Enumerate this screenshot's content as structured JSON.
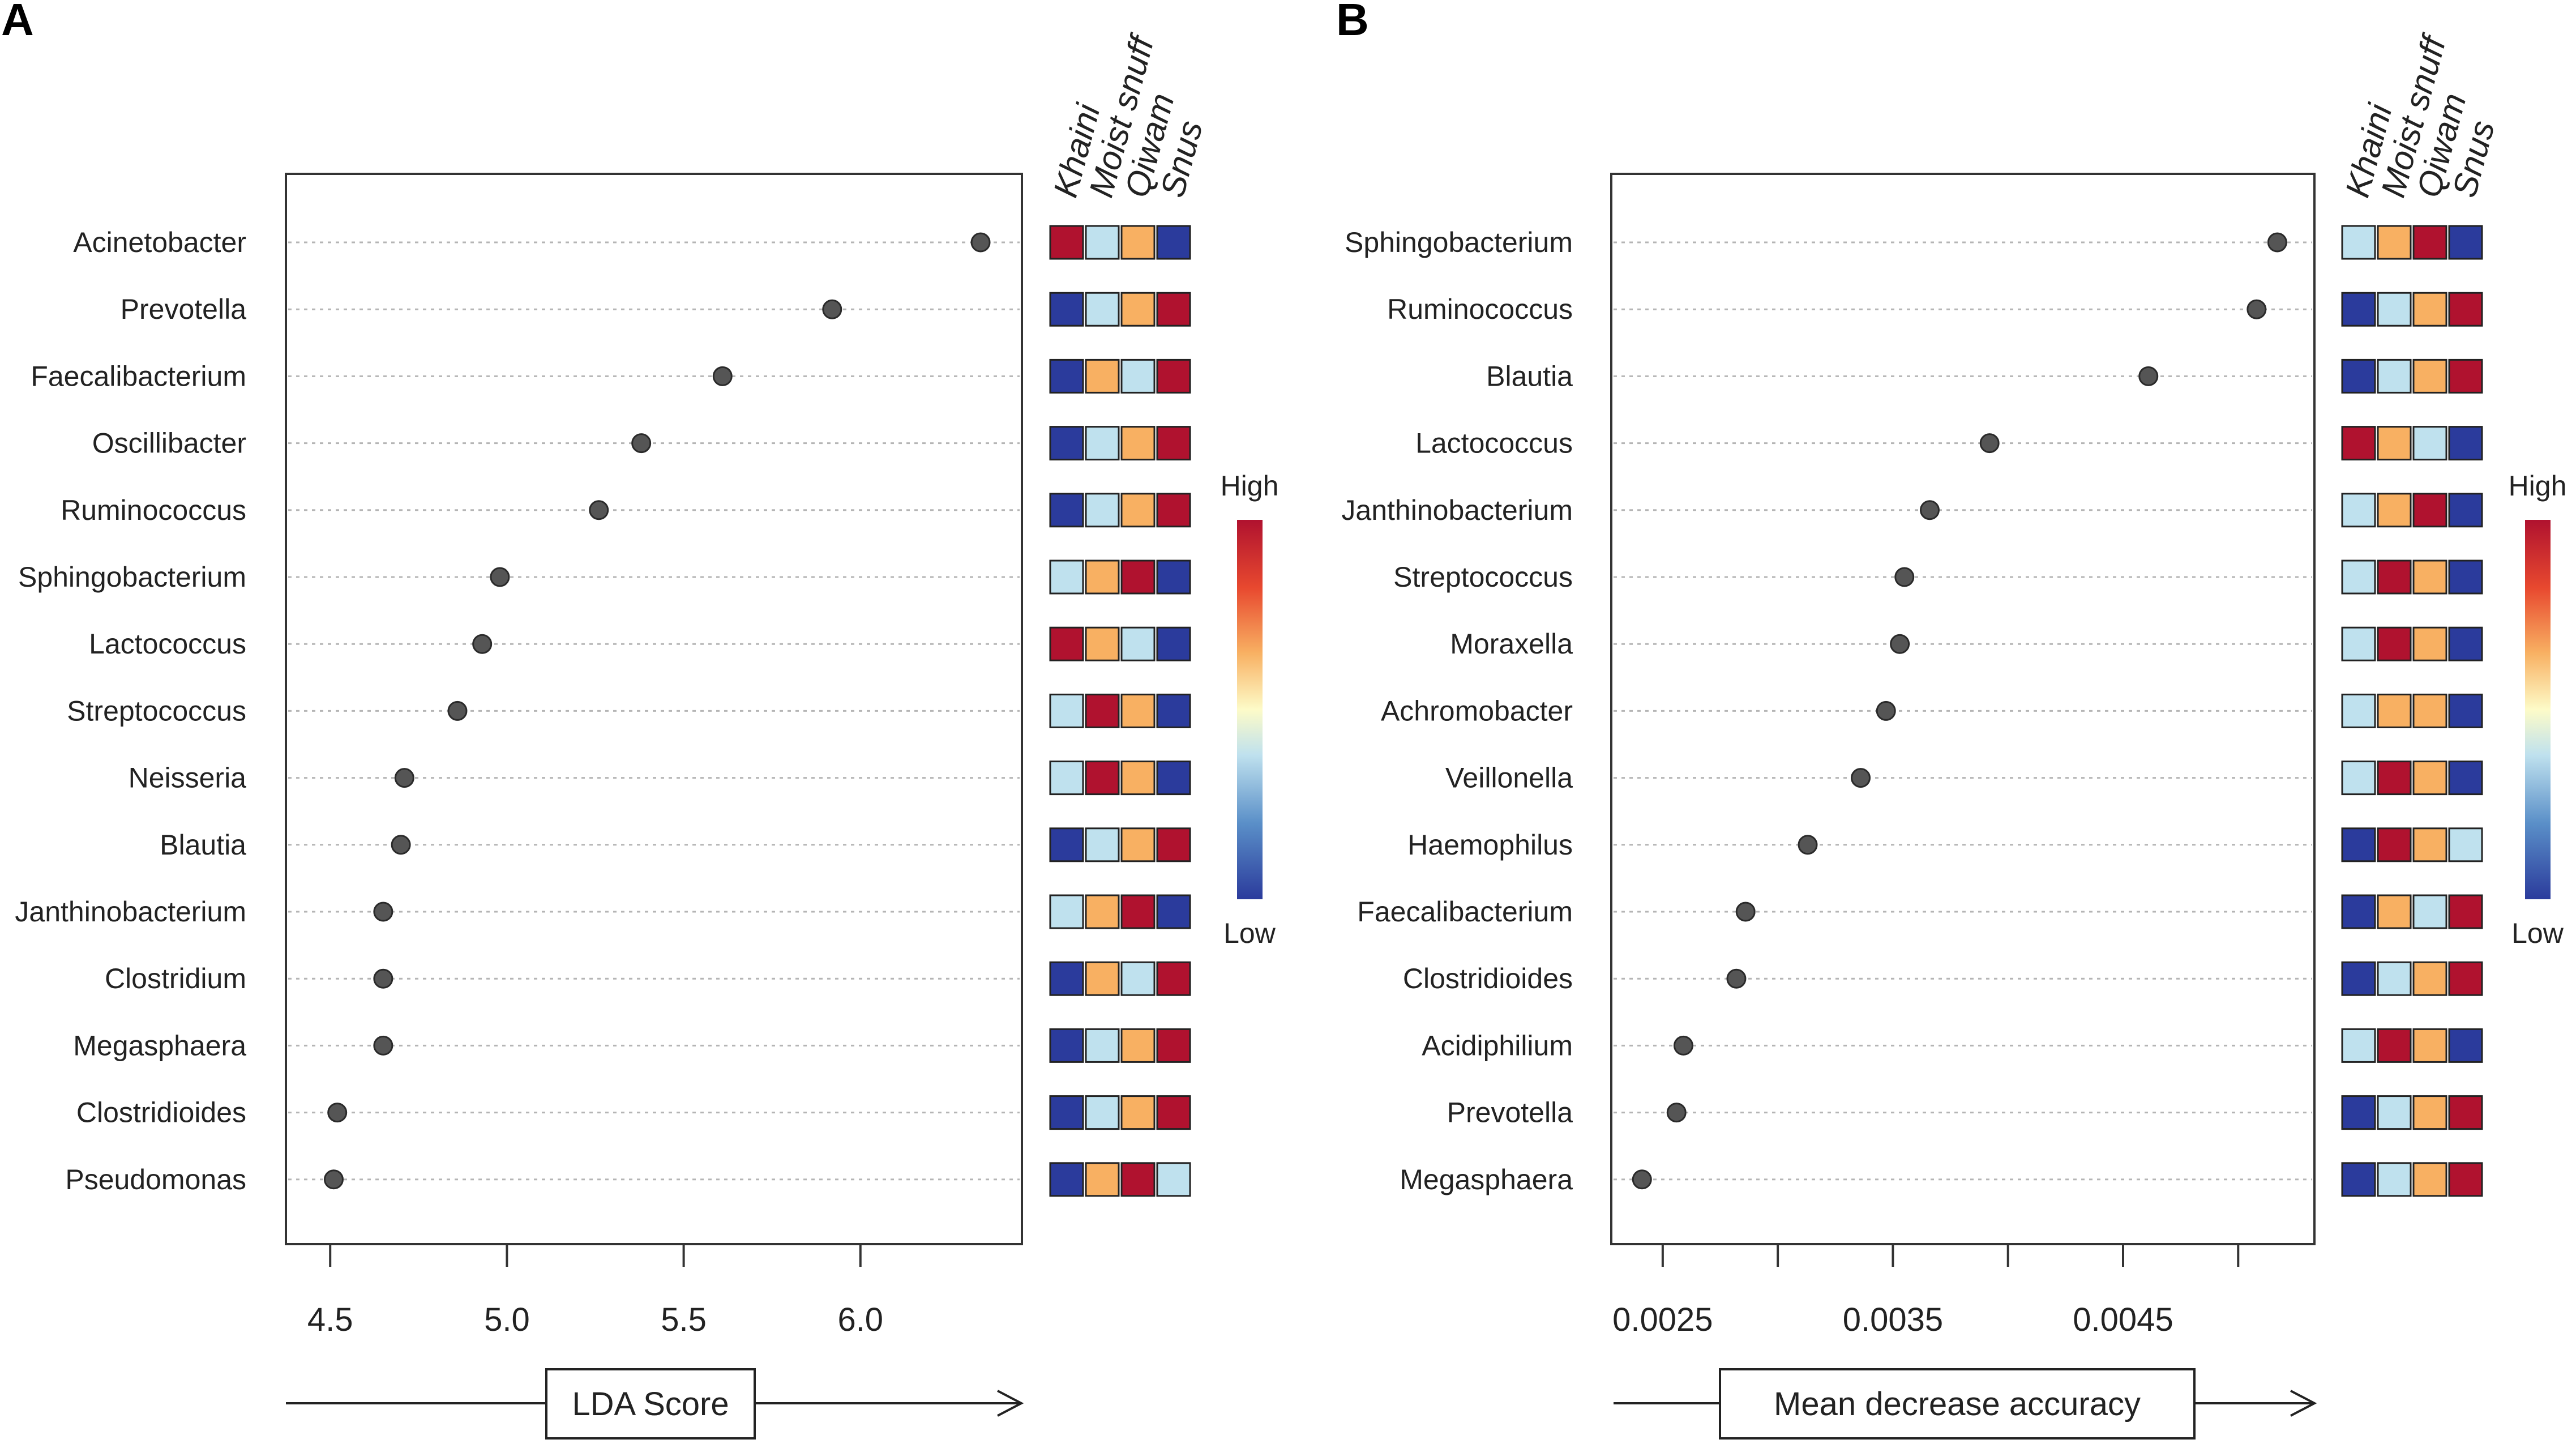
{
  "colors": {
    "low": "#2b3b9c",
    "mid_low": "#bfe1ee",
    "mid_high": "#f8b062",
    "high": "#b0122f",
    "dot": "#555555"
  },
  "legend": {
    "high_label": "High",
    "low_label": "Low"
  },
  "chart_data": [
    {
      "type": "scatter",
      "panel": "A",
      "xlabel": "LDA Score",
      "xlim": [
        4.45,
        6.42
      ],
      "xticks": [
        4.5,
        5.0,
        5.5,
        6.0
      ],
      "xtick_labels": [
        "4.5",
        "5.0",
        "5.5",
        "6.0"
      ],
      "groups": [
        "Khaini",
        "Moist snuff",
        "Qiwam",
        "Snus"
      ],
      "rows": [
        {
          "label": "Acinetobacter",
          "value": 6.34,
          "levels": [
            4,
            2,
            3,
            1
          ]
        },
        {
          "label": "Prevotella",
          "value": 5.92,
          "levels": [
            1,
            2,
            3,
            4
          ]
        },
        {
          "label": "Faecalibacterium",
          "value": 5.61,
          "levels": [
            1,
            3,
            2,
            4
          ]
        },
        {
          "label": "Oscillibacter",
          "value": 5.38,
          "levels": [
            1,
            2,
            3,
            4
          ]
        },
        {
          "label": "Ruminococcus",
          "value": 5.26,
          "levels": [
            1,
            2,
            3,
            4
          ]
        },
        {
          "label": "Sphingobacterium",
          "value": 4.98,
          "levels": [
            2,
            3,
            4,
            1
          ]
        },
        {
          "label": "Lactococcus",
          "value": 4.93,
          "levels": [
            4,
            3,
            2,
            1
          ]
        },
        {
          "label": "Streptococcus",
          "value": 4.86,
          "levels": [
            2,
            4,
            3,
            1
          ]
        },
        {
          "label": "Neisseria",
          "value": 4.71,
          "levels": [
            2,
            4,
            3,
            1
          ]
        },
        {
          "label": "Blautia",
          "value": 4.7,
          "levels": [
            1,
            2,
            3,
            4
          ]
        },
        {
          "label": "Janthinobacterium",
          "value": 4.65,
          "levels": [
            2,
            3,
            4,
            1
          ]
        },
        {
          "label": "Clostridium",
          "value": 4.65,
          "levels": [
            1,
            3,
            2,
            4
          ]
        },
        {
          "label": "Megasphaera",
          "value": 4.65,
          "levels": [
            1,
            2,
            3,
            4
          ]
        },
        {
          "label": "Clostridioides",
          "value": 4.52,
          "levels": [
            1,
            2,
            3,
            4
          ]
        },
        {
          "label": "Pseudomonas",
          "value": 4.51,
          "levels": [
            1,
            3,
            4,
            2
          ]
        }
      ]
    },
    {
      "type": "scatter",
      "panel": "B",
      "xlabel": "Mean decrease accuracy",
      "xlim": [
        0.00237,
        0.00526
      ],
      "xticks": [
        0.0025,
        0.003,
        0.0035,
        0.004,
        0.0045,
        0.005
      ],
      "xtick_labels": [
        "0.0025",
        "",
        "0.0035",
        "",
        "0.0045",
        ""
      ],
      "groups": [
        "Khaini",
        "Moist snuff",
        "Qiwam",
        "Snus"
      ],
      "rows": [
        {
          "label": "Sphingobacterium",
          "value": 0.00517,
          "levels": [
            2,
            3,
            4,
            1
          ]
        },
        {
          "label": "Ruminococcus",
          "value": 0.00508,
          "levels": [
            1,
            2,
            3,
            4
          ]
        },
        {
          "label": "Blautia",
          "value": 0.00461,
          "levels": [
            1,
            2,
            3,
            4
          ]
        },
        {
          "label": "Lactococcus",
          "value": 0.00392,
          "levels": [
            4,
            3,
            2,
            1
          ]
        },
        {
          "label": "Janthinobacterium",
          "value": 0.00366,
          "levels": [
            2,
            3,
            4,
            1
          ]
        },
        {
          "label": "Streptococcus",
          "value": 0.00355,
          "levels": [
            2,
            4,
            3,
            1
          ]
        },
        {
          "label": "Moraxella",
          "value": 0.00353,
          "levels": [
            2,
            4,
            3,
            1
          ]
        },
        {
          "label": "Achromobacter",
          "value": 0.00347,
          "levels": [
            2,
            3,
            3,
            1
          ]
        },
        {
          "label": "Veillonella",
          "value": 0.00336,
          "levels": [
            2,
            4,
            3,
            1
          ]
        },
        {
          "label": "Haemophilus",
          "value": 0.00313,
          "levels": [
            1,
            4,
            3,
            2
          ]
        },
        {
          "label": "Faecalibacterium",
          "value": 0.00286,
          "levels": [
            1,
            3,
            2,
            4
          ]
        },
        {
          "label": "Clostridioides",
          "value": 0.00282,
          "levels": [
            1,
            2,
            3,
            4
          ]
        },
        {
          "label": "Acidiphilium",
          "value": 0.00259,
          "levels": [
            2,
            4,
            3,
            1
          ]
        },
        {
          "label": "Prevotella",
          "value": 0.00256,
          "levels": [
            1,
            2,
            3,
            4
          ]
        },
        {
          "label": "Megasphaera",
          "value": 0.00241,
          "levels": [
            1,
            2,
            3,
            4
          ]
        }
      ]
    }
  ]
}
